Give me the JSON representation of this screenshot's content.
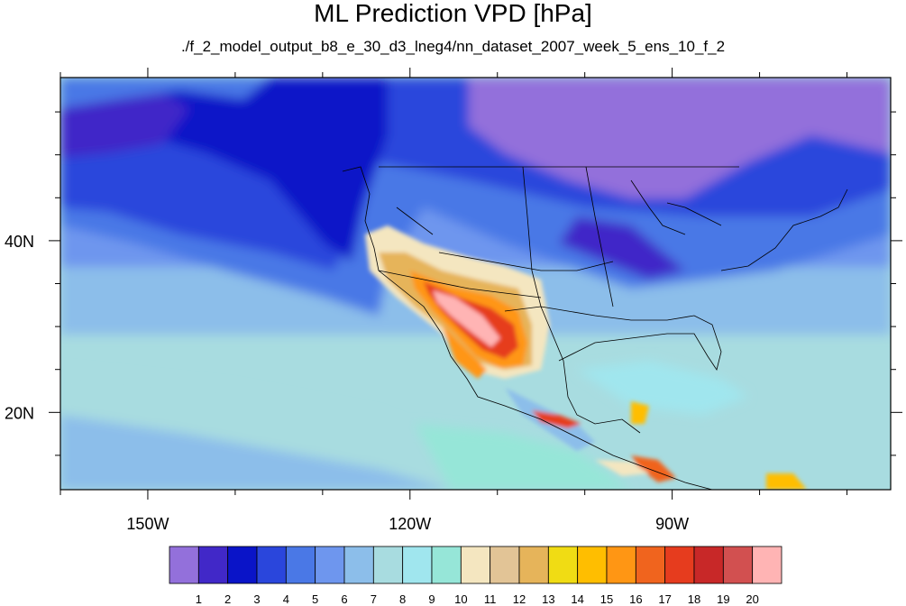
{
  "chart_data": {
    "type": "heatmap",
    "title": "ML Prediction VPD [hPa]",
    "subtitle": "./f_2_model_output_b8_e_30_d3_lneg4/nn_dataset_2007_week_5_ens_10_f_2",
    "xlabel": "",
    "ylabel": "",
    "lon_range": [
      -160,
      -65
    ],
    "lat_range": [
      11,
      59
    ],
    "x_ticks": [
      {
        "value": -150,
        "label": "150W"
      },
      {
        "value": -120,
        "label": "120W"
      },
      {
        "value": -90,
        "label": "90W"
      }
    ],
    "y_ticks": [
      {
        "value": 40,
        "label": "40N"
      },
      {
        "value": 20,
        "label": "20N"
      }
    ],
    "colorbar": {
      "orientation": "horizontal",
      "placement": "bottom",
      "boundaries": [
        1,
        2,
        3,
        4,
        5,
        6,
        7,
        8,
        9,
        10,
        11,
        12,
        13,
        14,
        15,
        16,
        17,
        18,
        19,
        20
      ],
      "colors": [
        "#9370db",
        "#4128c8",
        "#0a14c8",
        "#2a46dc",
        "#4a78e6",
        "#6e96ee",
        "#8cbeea",
        "#a8dce0",
        "#a0e6ee",
        "#96e6d8",
        "#f4e6c0",
        "#e2c496",
        "#e6b45a",
        "#f0dc14",
        "#ffbe00",
        "#ff9614",
        "#f0641e",
        "#e63c1e",
        "#c82828",
        "#d25050",
        "#ffb4b4"
      ]
    }
  }
}
